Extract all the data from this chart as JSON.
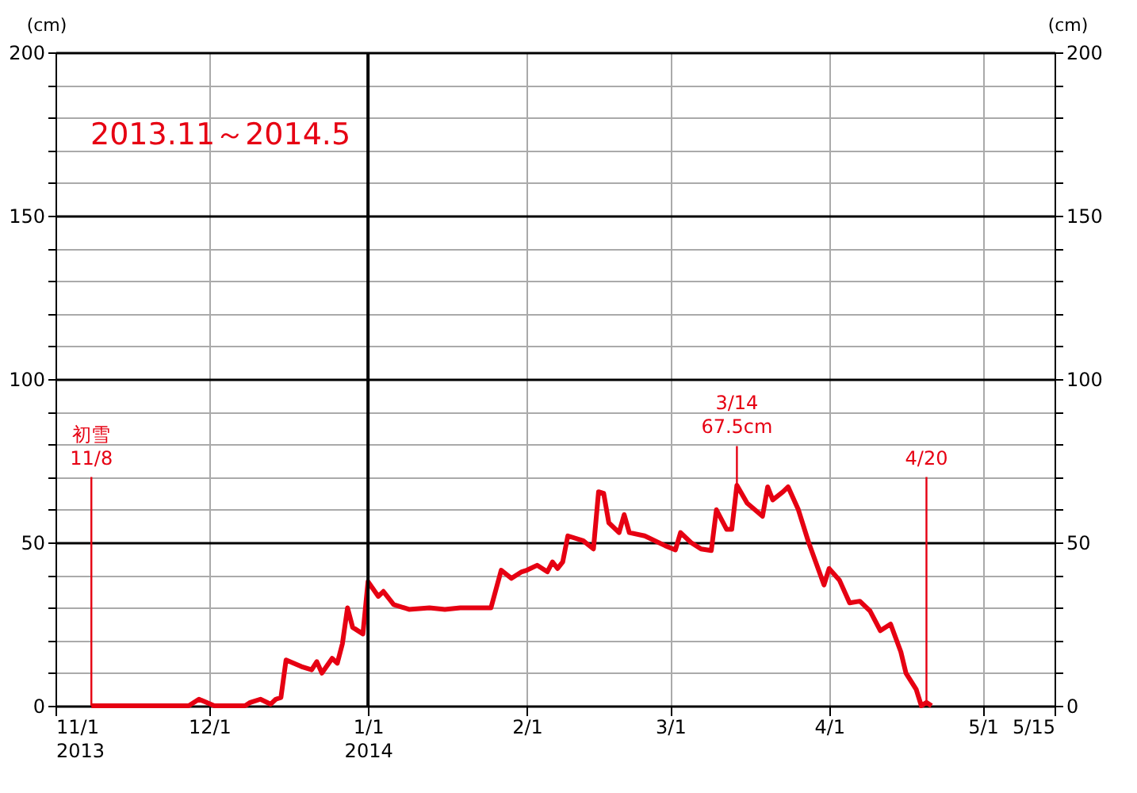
{
  "chart_data": {
    "type": "line",
    "title": "2013.11～2014.5",
    "ylabel": "(cm)",
    "y2label": "(cm)",
    "x": [
      "2013-11-08",
      "2013-11-27",
      "2013-11-29",
      "2013-12-02",
      "2013-12-08",
      "2013-12-09",
      "2013-12-11",
      "2013-12-13",
      "2013-12-14",
      "2013-12-15",
      "2013-12-16",
      "2013-12-19",
      "2013-12-21",
      "2013-12-22",
      "2013-12-23",
      "2013-12-25",
      "2013-12-26",
      "2013-12-27",
      "2013-12-28",
      "2013-12-29",
      "2013-12-31",
      "2014-01-01",
      "2014-01-03",
      "2014-01-04",
      "2014-01-06",
      "2014-01-09",
      "2014-01-13",
      "2014-01-16",
      "2014-01-19",
      "2014-01-25",
      "2014-01-27",
      "2014-01-29",
      "2014-01-31",
      "2014-02-01",
      "2014-02-03",
      "2014-02-05",
      "2014-02-06",
      "2014-02-07",
      "2014-02-08",
      "2014-02-09",
      "2014-02-12",
      "2014-02-14",
      "2014-02-15",
      "2014-02-16",
      "2014-02-17",
      "2014-02-19",
      "2014-02-20",
      "2014-02-21",
      "2014-02-24",
      "2014-02-28",
      "2014-03-02",
      "2014-03-03",
      "2014-03-05",
      "2014-03-07",
      "2014-03-09",
      "2014-03-10",
      "2014-03-12",
      "2014-03-13",
      "2014-03-14",
      "2014-03-16",
      "2014-03-19",
      "2014-03-20",
      "2014-03-21",
      "2014-03-23",
      "2014-03-24",
      "2014-03-26",
      "2014-03-28",
      "2014-03-31",
      "2014-04-01",
      "2014-04-03",
      "2014-04-05",
      "2014-04-07",
      "2014-04-09",
      "2014-04-11",
      "2014-04-13",
      "2014-04-15",
      "2014-04-16",
      "2014-04-18",
      "2014-04-19",
      "2014-04-20",
      "2014-04-21"
    ],
    "series": [
      {
        "color": "#e60012",
        "values": [
          0,
          0,
          2,
          0,
          0,
          1,
          2,
          0.5,
          2,
          2.5,
          14,
          12,
          11,
          13.5,
          10,
          14.5,
          13,
          19,
          30,
          24,
          22,
          38,
          33.5,
          35,
          31,
          29.5,
          30,
          29.5,
          30,
          30,
          41.5,
          39,
          41,
          41.5,
          43,
          41,
          44,
          42,
          44,
          52,
          50.5,
          48,
          65.5,
          65,
          56,
          53,
          58.5,
          53,
          52,
          49,
          47.7,
          53,
          50,
          48,
          47.5,
          60,
          54,
          54,
          67.5,
          62,
          58,
          67,
          63,
          65.5,
          67,
          60,
          50,
          37,
          42,
          38.5,
          31.5,
          32,
          29,
          23,
          25,
          16.5,
          10,
          5,
          0,
          1,
          0
        ]
      }
    ],
    "annotations": [
      {
        "text": "初雪\n11/8",
        "x": "2013-11-08",
        "y": 0
      },
      {
        "text": "3/14\n67.5cm",
        "x": "2014-03-14",
        "y": 67.5
      },
      {
        "text": "4/20",
        "x": "2014-04-20",
        "y": 0
      }
    ],
    "xlim": [
      "2013-11-01",
      "2014-05-15"
    ],
    "xticks": [
      {
        "value": "2013-11-01",
        "label": "11/1\n2013"
      },
      {
        "value": "2013-12-01",
        "label": "12/1"
      },
      {
        "value": "2014-01-01",
        "label": "1/1\n2014"
      },
      {
        "value": "2014-02-01",
        "label": "2/1"
      },
      {
        "value": "2014-03-01",
        "label": "3/1"
      },
      {
        "value": "2014-04-01",
        "label": "4/1"
      },
      {
        "value": "2014-05-01",
        "label": "5/1"
      },
      {
        "value": "2014-05-15",
        "label": "5/15"
      }
    ],
    "ylim": [
      0,
      200
    ],
    "yticks": [
      0,
      {
        "value": 10,
        "label": null
      },
      {
        "value": 20,
        "label": null
      },
      {
        "value": 30,
        "label": null
      },
      {
        "value": 40,
        "label": null
      },
      50,
      {
        "value": 60,
        "label": null
      },
      {
        "value": 70,
        "label": null
      },
      {
        "value": 80,
        "label": null
      },
      {
        "value": 90,
        "label": null
      },
      100,
      {
        "value": 110,
        "label": null
      },
      {
        "value": 120,
        "label": null
      },
      {
        "value": 130,
        "label": null
      },
      {
        "value": 140,
        "label": null
      },
      150,
      {
        "value": 160,
        "label": null
      },
      {
        "value": 170,
        "label": null
      },
      {
        "value": 180,
        "label": null
      },
      {
        "value": 190,
        "label": null
      },
      200
    ],
    "y2lim": [
      0,
      200
    ],
    "y2ticks": [
      0,
      {
        "value": 10,
        "label": null
      },
      {
        "value": 20,
        "label": null
      },
      {
        "value": 30,
        "label": null
      },
      {
        "value": 40,
        "label": null
      },
      50,
      {
        "value": 60,
        "label": null
      },
      {
        "value": 70,
        "label": null
      },
      {
        "value": 80,
        "label": null
      },
      {
        "value": 90,
        "label": null
      },
      100,
      {
        "value": 110,
        "label": null
      },
      {
        "value": 120,
        "label": null
      },
      {
        "value": 130,
        "label": null
      },
      {
        "value": 140,
        "label": null
      },
      150,
      {
        "value": 160,
        "label": null
      },
      {
        "value": 170,
        "label": null
      },
      {
        "value": 180,
        "label": null
      },
      {
        "value": 190,
        "label": null
      },
      200
    ],
    "ref_lines": [
      {
        "axis": "x",
        "value": "2014-01-01",
        "color": "#000000",
        "line_style": "solid"
      }
    ],
    "grid": true,
    "legend": false,
    "marker": "none",
    "line_style": "solid"
  }
}
